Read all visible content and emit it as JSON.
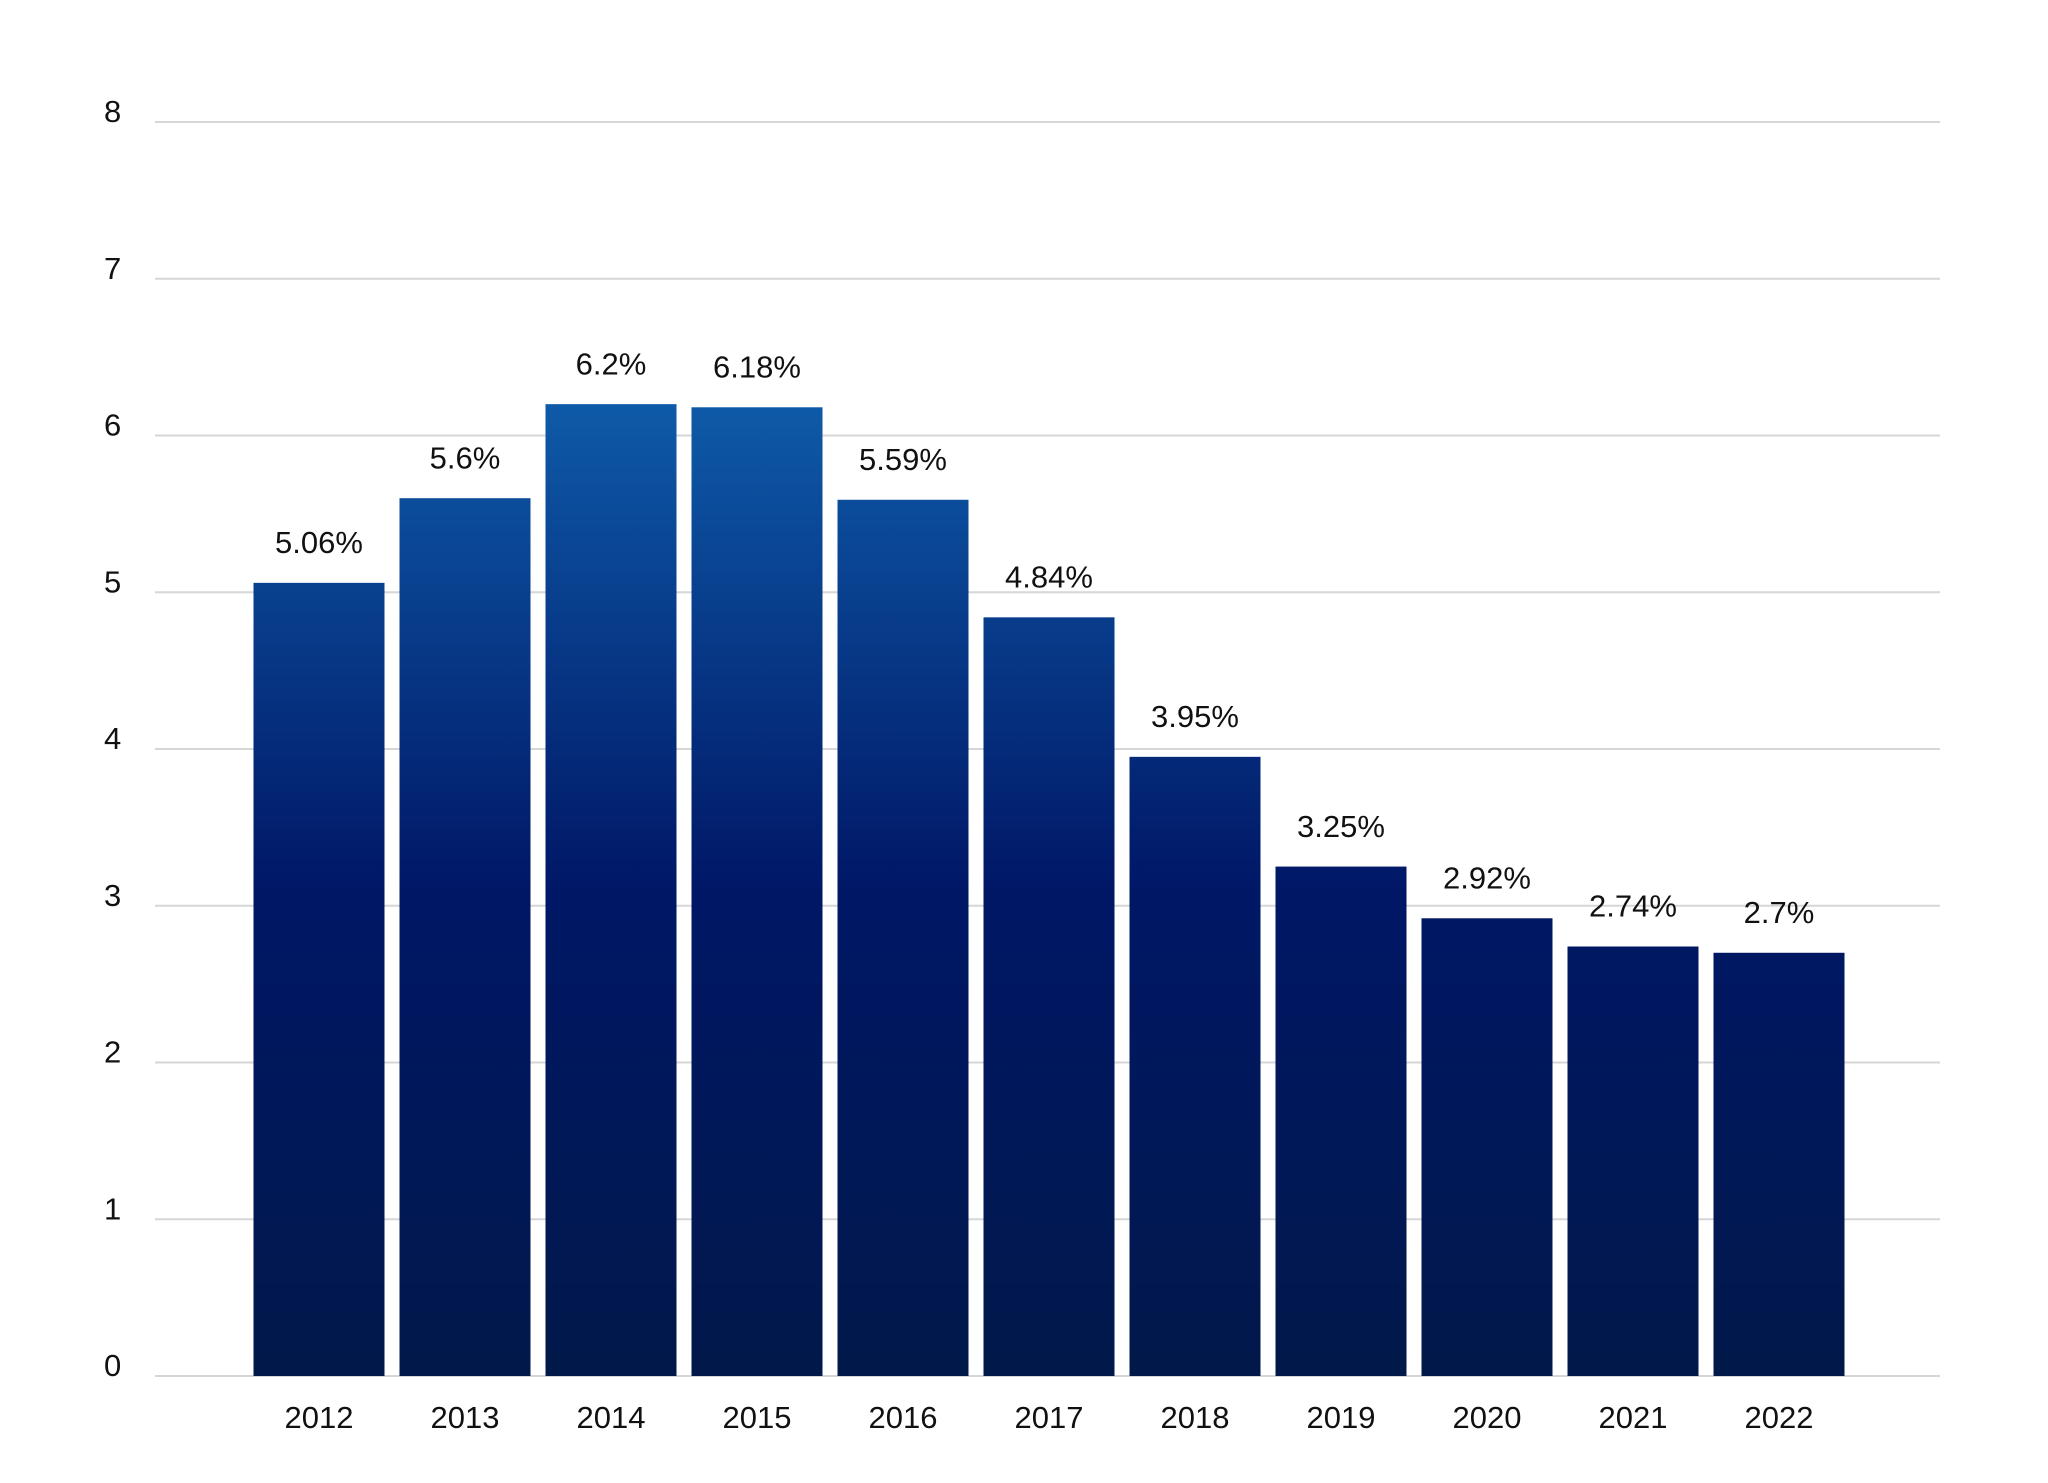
{
  "chart_data": {
    "type": "bar",
    "categories": [
      "2012",
      "2013",
      "2014",
      "2015",
      "2016",
      "2017",
      "2018",
      "2019",
      "2020",
      "2021",
      "2022"
    ],
    "values": [
      5.06,
      5.6,
      6.2,
      6.18,
      5.59,
      4.84,
      3.95,
      3.25,
      2.92,
      2.74,
      2.7
    ],
    "value_labels": [
      "5.06%",
      "5.6%",
      "6.2%",
      "6.18%",
      "5.59%",
      "4.84%",
      "3.95%",
      "3.25%",
      "2.92%",
      "2.74%",
      "2.7%"
    ],
    "colors": [
      "#0e5aa8",
      "#001766",
      "#01184a"
    ],
    "ylim": [
      0,
      8
    ],
    "yticks": [
      0,
      1,
      2,
      3,
      4,
      5,
      6,
      7,
      8
    ],
    "grid": true
  }
}
